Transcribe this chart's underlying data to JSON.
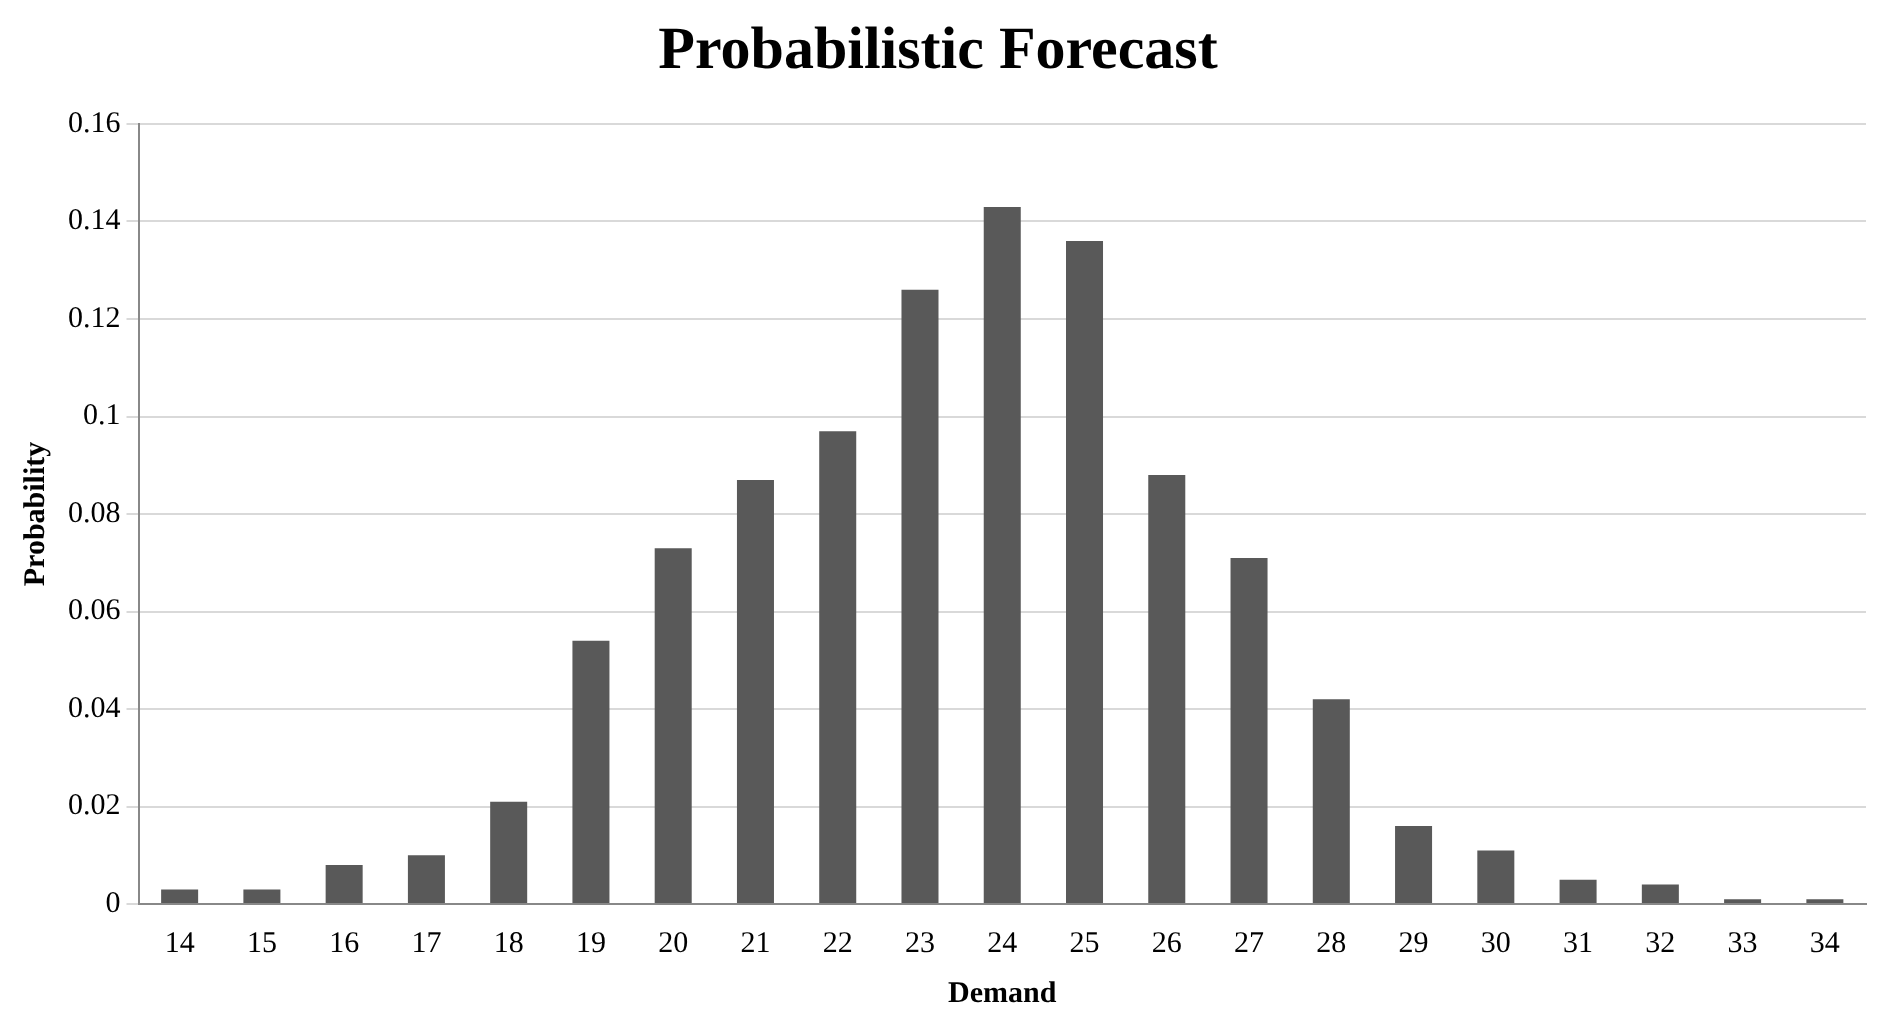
{
  "chart_data": {
    "type": "bar",
    "title": "Probabilistic Forecast",
    "xlabel": "Demand",
    "ylabel": "Probability",
    "categories": [
      "14",
      "15",
      "16",
      "17",
      "18",
      "19",
      "20",
      "21",
      "22",
      "23",
      "24",
      "25",
      "26",
      "27",
      "28",
      "29",
      "30",
      "31",
      "32",
      "33",
      "34"
    ],
    "values": [
      0.003,
      0.003,
      0.008,
      0.01,
      0.021,
      0.054,
      0.073,
      0.087,
      0.097,
      0.126,
      0.143,
      0.136,
      0.088,
      0.071,
      0.042,
      0.016,
      0.011,
      0.005,
      0.004,
      0.001,
      0.001
    ],
    "color": "#595959",
    "ylim": [
      0,
      0.16
    ],
    "yticks": [
      0,
      0.02,
      0.04,
      0.06,
      0.08,
      0.1,
      0.12,
      0.14,
      0.16
    ],
    "grid": "y",
    "legend": false
  }
}
